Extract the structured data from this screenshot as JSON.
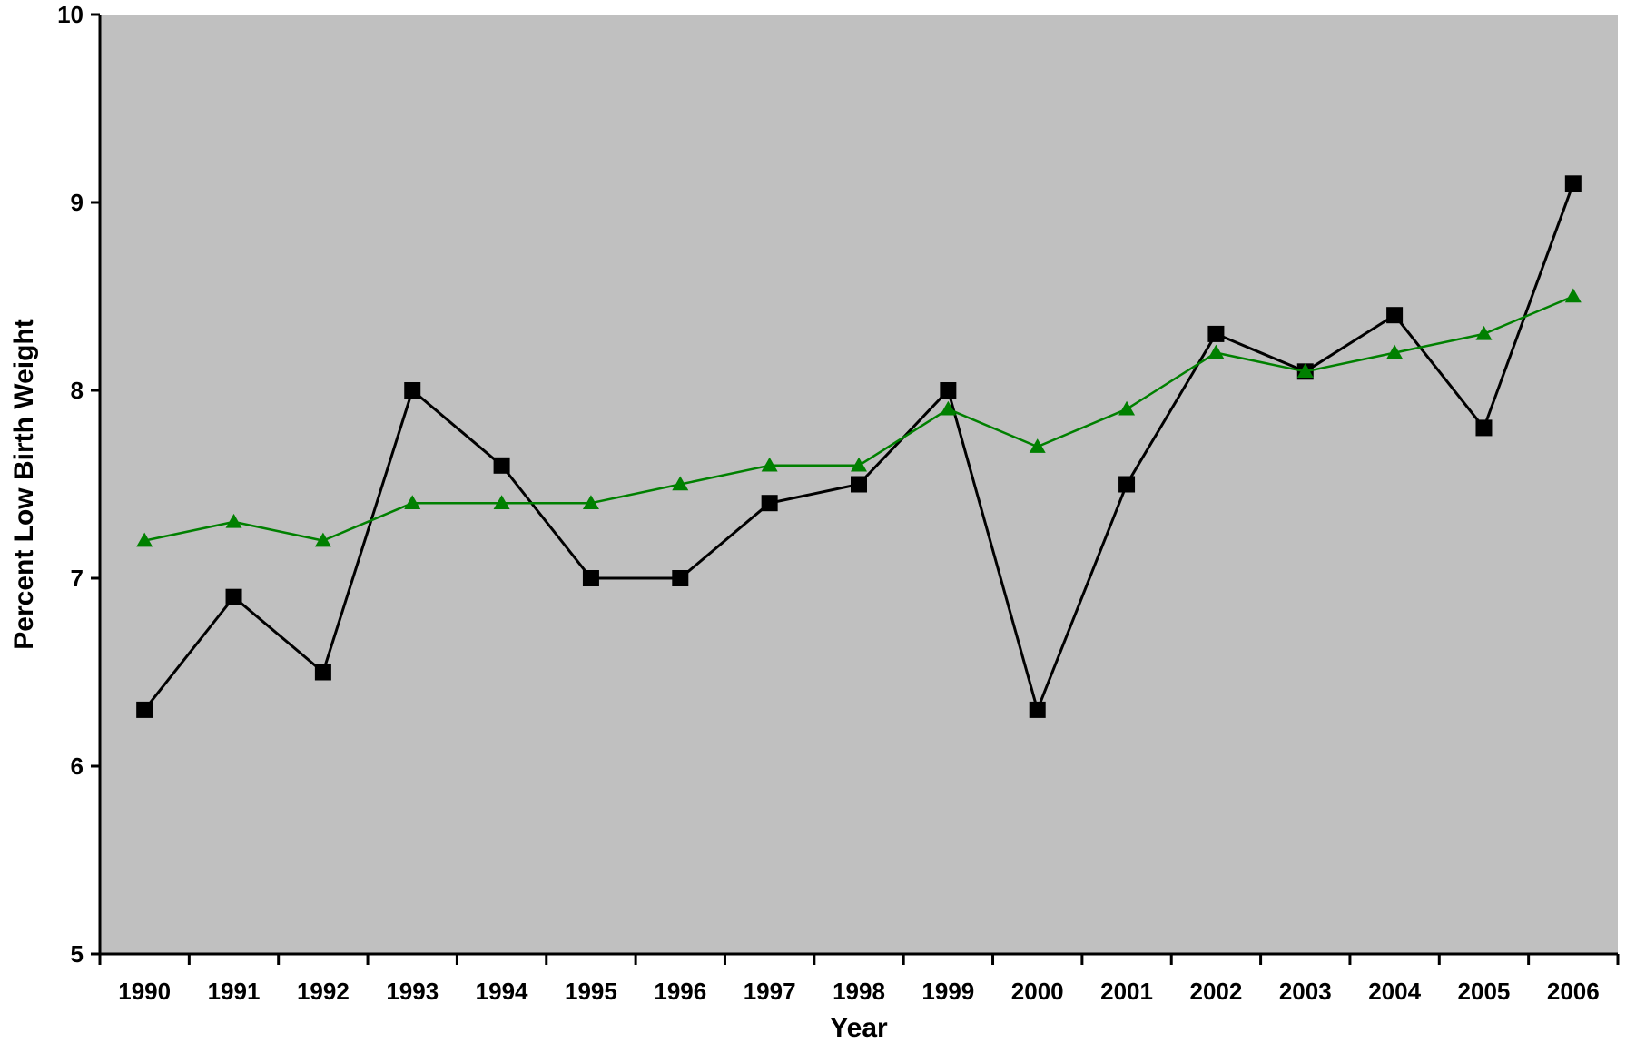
{
  "chart_data": {
    "type": "line",
    "title": "",
    "xlabel": "Year",
    "ylabel": "Percent Low Birth Weight",
    "categories": [
      "1990",
      "1991",
      "1992",
      "1993",
      "1994",
      "1995",
      "1996",
      "1997",
      "1998",
      "1999",
      "2000",
      "2001",
      "2002",
      "2003",
      "2004",
      "2005",
      "2006"
    ],
    "ylim": [
      5,
      10
    ],
    "yticks": [
      "5",
      "6",
      "7",
      "8",
      "9",
      "10"
    ],
    "grid": false,
    "legend": "none",
    "plot_background": "#c0c0c0",
    "series": [
      {
        "marker": "square",
        "color": "#000000",
        "values": [
          6.3,
          6.9,
          6.5,
          8.0,
          7.6,
          7.0,
          7.0,
          7.4,
          7.5,
          8.0,
          6.3,
          7.5,
          8.3,
          8.1,
          8.4,
          7.8,
          9.1
        ]
      },
      {
        "marker": "triangle",
        "color": "#008000",
        "values": [
          7.2,
          7.3,
          7.2,
          7.4,
          7.4,
          7.4,
          7.5,
          7.6,
          7.6,
          7.9,
          7.7,
          7.9,
          8.2,
          8.1,
          8.2,
          8.3,
          8.5
        ]
      }
    ]
  }
}
